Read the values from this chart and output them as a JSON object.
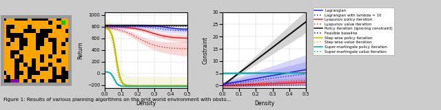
{
  "grid_world": {
    "size": 16,
    "obstacle_color": "#FFA500",
    "start_color": "#00CC00",
    "goal_color": "#8800BB",
    "border_color": "#999999"
  },
  "colors": {
    "blue": "#2222EE",
    "red": "#EE2222",
    "black": "#111111",
    "yellow": "#BBBB00",
    "cyan": "#00AAAA",
    "gray_bg": "#CCCCCC"
  },
  "return_plot": {
    "xlabel": "Density",
    "ylabel": "Return",
    "xlim": [
      0.0,
      0.5
    ],
    "ylim": [
      -250,
      1050
    ],
    "yticks": [
      -200,
      0,
      200,
      400,
      600,
      800,
      1000
    ],
    "xticks": [
      0.0,
      0.1,
      0.2,
      0.3,
      0.4,
      0.5
    ]
  },
  "constraint_plot": {
    "xlabel": "Density",
    "ylabel": "Constraint",
    "xlim": [
      0.0,
      0.5
    ],
    "ylim": [
      -1,
      30
    ],
    "yticks": [
      0,
      5,
      10,
      15,
      20,
      25,
      30
    ],
    "xticks": [
      0.0,
      0.1,
      0.2,
      0.3,
      0.4,
      0.5
    ]
  },
  "legend_entries": [
    {
      "label": "Lagrangian",
      "color": "#2222EE",
      "linestyle": "-"
    },
    {
      "label": "Lagrangian with lambda = 10",
      "color": "#2222EE",
      "linestyle": ":"
    },
    {
      "label": "Lyapunov policy iteration",
      "color": "#EE2222",
      "linestyle": "-"
    },
    {
      "label": "Lyapunov value iteration",
      "color": "#EE2222",
      "linestyle": ":"
    },
    {
      "label": "Policy iteration (ignoring constraint)",
      "color": "#111111",
      "linestyle": "-"
    },
    {
      "label": "Feasible baseline",
      "color": "#111111",
      "linestyle": ":"
    },
    {
      "label": "Step-wise policy iteration",
      "color": "#BBBB00",
      "linestyle": "-"
    },
    {
      "label": "Step-wise value iteration",
      "color": "#BBBB00",
      "linestyle": ":"
    },
    {
      "label": "Super-martingale policy iteration",
      "color": "#00AAAA",
      "linestyle": "-"
    },
    {
      "label": "Super-martingale value iteration",
      "color": "#00AAAA",
      "linestyle": ":"
    }
  ],
  "caption": "Figure 1: Results of various planning algorithms on the grid world environment with obsto..."
}
